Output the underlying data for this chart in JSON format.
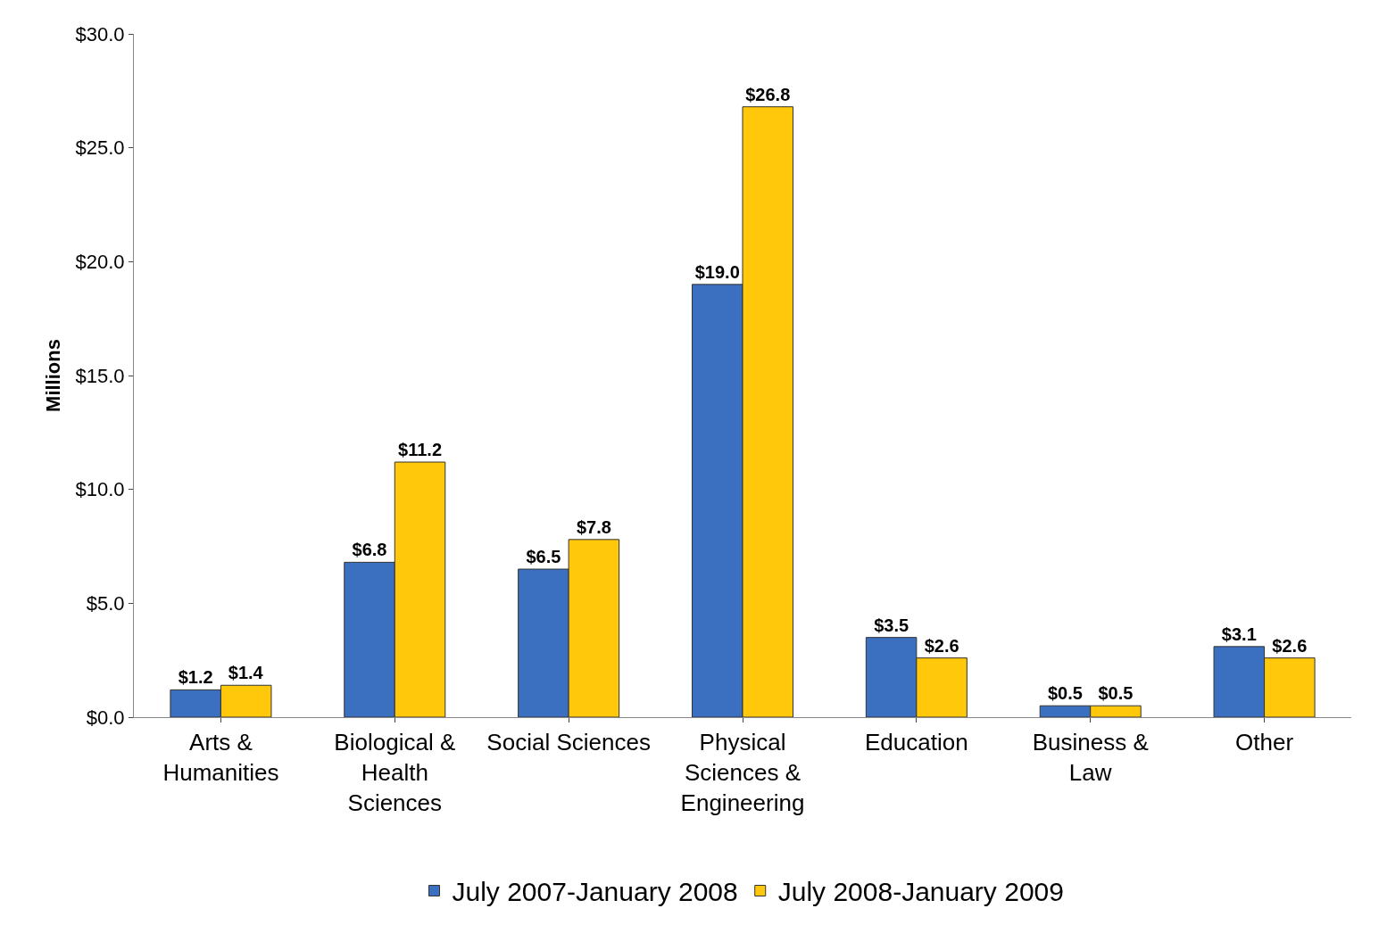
{
  "chart_data": {
    "type": "bar",
    "ylabel": "Millions",
    "categories": [
      "Arts &\nHumanities",
      "Biological &\nHealth\nSciences",
      "Social Sciences",
      "Physical\nSciences &\nEngineering",
      "Education",
      "Business &\nLaw",
      "Other"
    ],
    "series": [
      {
        "name": "July 2007-January 2008",
        "color": "#3b6fbf",
        "values": [
          1.2,
          6.8,
          6.5,
          19.0,
          3.5,
          0.5,
          3.1
        ],
        "value_labels": [
          "$1.2",
          "$6.8",
          "$6.5",
          "$19.0",
          "$3.5",
          "$0.5",
          "$3.1"
        ]
      },
      {
        "name": "July 2008-January 2009",
        "color": "#ffc80a",
        "values": [
          1.4,
          11.2,
          7.8,
          26.8,
          2.6,
          0.5,
          2.6
        ],
        "value_labels": [
          "$1.4",
          "$11.2",
          "$7.8",
          "$26.8",
          "$2.6",
          "$0.5",
          "$2.6"
        ]
      }
    ],
    "ylim": [
      0,
      30
    ],
    "yticks": [
      {
        "value": 0,
        "label": "$0.0"
      },
      {
        "value": 5,
        "label": "$5.0"
      },
      {
        "value": 10,
        "label": "$10.0"
      },
      {
        "value": 15,
        "label": "$15.0"
      },
      {
        "value": 20,
        "label": "$20.0"
      },
      {
        "value": 25,
        "label": "$25.0"
      },
      {
        "value": 30,
        "label": "$30.0"
      }
    ],
    "grid": false,
    "legend": "bottom"
  }
}
